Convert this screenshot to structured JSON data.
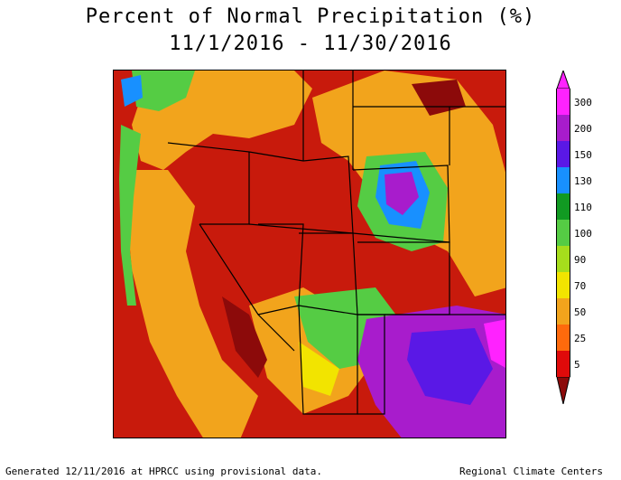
{
  "header": {
    "title": "Percent of Normal Precipitation (%)",
    "subtitle": "11/1/2016 - 11/30/2016"
  },
  "footer": {
    "left": "Generated 12/11/2016 at HPRCC using provisional data.",
    "right": "Regional Climate Centers"
  },
  "legend": {
    "classes": [
      {
        "label": "300",
        "color": "#ff22ff"
      },
      {
        "label": "200",
        "color": "#a81ccc"
      },
      {
        "label": "150",
        "color": "#5a18e6"
      },
      {
        "label": "130",
        "color": "#1890ff"
      },
      {
        "label": "110",
        "color": "#119a22"
      },
      {
        "label": "100",
        "color": "#55cc44"
      },
      {
        "label": "90",
        "color": "#a6dd1c"
      },
      {
        "label": "70",
        "color": "#f2e400"
      },
      {
        "label": "50",
        "color": "#f2a41c"
      },
      {
        "label": "25",
        "color": "#ff6a0c"
      },
      {
        "label": "5",
        "color": "#e00a0a"
      }
    ],
    "bottom_color": "#8c0a0a"
  },
  "map": {
    "background_color": "#c81a0c"
  }
}
